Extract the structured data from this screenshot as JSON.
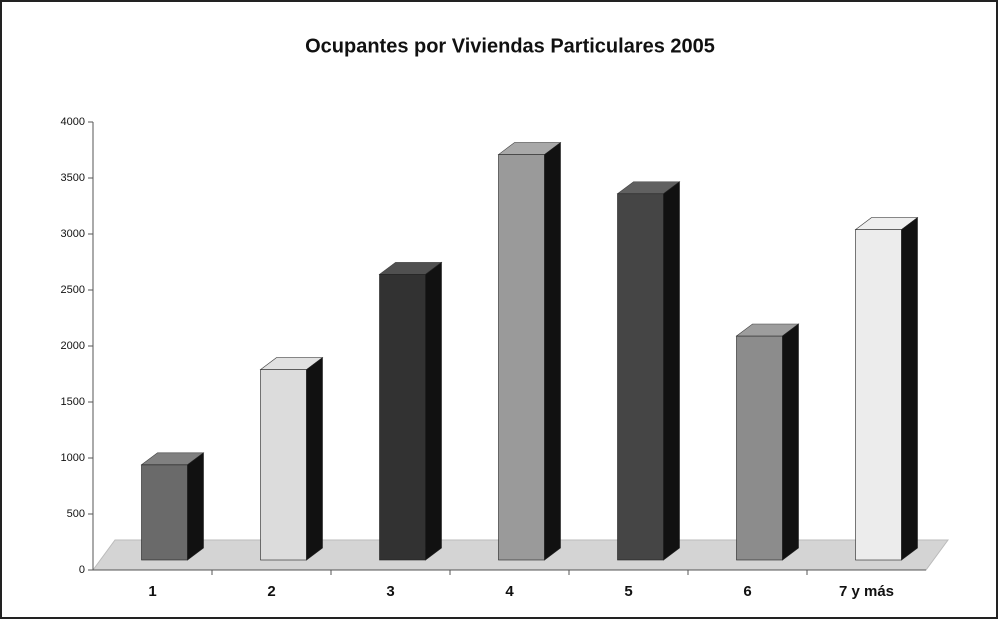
{
  "chart_data": {
    "type": "bar3d",
    "title": "Ocupantes por Viviendas Particulares 2005",
    "categories": [
      "1",
      "2",
      "3",
      "4",
      "5",
      "6",
      "7 y más"
    ],
    "values": [
      850,
      1700,
      2550,
      3620,
      3270,
      2000,
      2950
    ],
    "colors": [
      "#6a6a6a",
      "#dcdcdc",
      "#323232",
      "#9a9a9a",
      "#454545",
      "#8c8c8c",
      "#ececec"
    ],
    "ylim": [
      0,
      4000
    ],
    "yticks": [
      0,
      500,
      1000,
      1500,
      2000,
      2500,
      3000,
      3500,
      4000
    ]
  }
}
